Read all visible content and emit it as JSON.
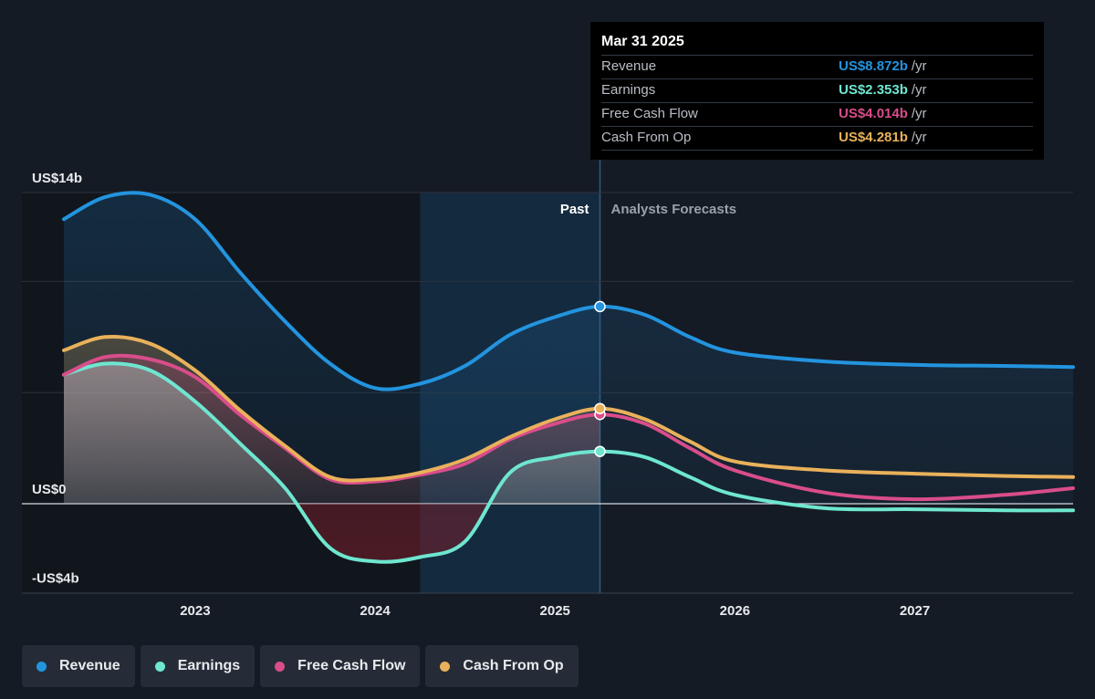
{
  "chart_data": {
    "type": "line",
    "x_range": [
      2022.27,
      2027.88
    ],
    "x_ticks": [
      {
        "value": 2023,
        "label": "2023"
      },
      {
        "value": 2024,
        "label": "2024"
      },
      {
        "value": 2025,
        "label": "2025"
      },
      {
        "value": 2026,
        "label": "2026"
      },
      {
        "value": 2027,
        "label": "2027"
      }
    ],
    "ylim": [
      -4.1,
      14.4
    ],
    "y_ticks": [
      {
        "value": 14,
        "label": "US$14b"
      },
      {
        "value": 0,
        "label": "US$0"
      },
      {
        "value": -4,
        "label": "-US$4b"
      }
    ],
    "gridlines": [
      14,
      10,
      5
    ],
    "past_label": "Past",
    "forecast_label": "Analysts Forecasts",
    "past_end": 2025.25,
    "highlight_start": 2024.25,
    "series": [
      {
        "name": "Revenue",
        "color": "#2394df",
        "x": [
          2022.27,
          2022.5,
          2022.75,
          2023.0,
          2023.25,
          2023.5,
          2023.75,
          2024.0,
          2024.25,
          2024.5,
          2024.75,
          2025.0,
          2025.25,
          2025.5,
          2025.75,
          2026.0,
          2026.5,
          2027.0,
          2027.5,
          2027.88
        ],
        "y": [
          12.8,
          13.8,
          13.9,
          12.8,
          10.4,
          8.2,
          6.3,
          5.2,
          5.4,
          6.2,
          7.6,
          8.4,
          8.872,
          8.5,
          7.5,
          6.8,
          6.4,
          6.25,
          6.2,
          6.15
        ]
      },
      {
        "name": "Earnings",
        "color": "#6ee6d0",
        "x": [
          2022.27,
          2022.5,
          2022.75,
          2023.0,
          2023.25,
          2023.5,
          2023.75,
          2024.0,
          2024.25,
          2024.5,
          2024.75,
          2025.0,
          2025.25,
          2025.5,
          2025.75,
          2026.0,
          2026.5,
          2027.0,
          2027.5,
          2027.88
        ],
        "y": [
          5.8,
          6.3,
          6.0,
          4.6,
          2.7,
          0.7,
          -2.0,
          -2.6,
          -2.4,
          -1.7,
          1.4,
          2.1,
          2.353,
          2.1,
          1.2,
          0.4,
          -0.2,
          -0.25,
          -0.3,
          -0.3
        ]
      },
      {
        "name": "Free Cash Flow",
        "color": "#d94d8a",
        "x": [
          2022.27,
          2022.5,
          2022.75,
          2023.0,
          2023.25,
          2023.5,
          2023.75,
          2024.0,
          2024.25,
          2024.5,
          2024.75,
          2025.0,
          2025.25,
          2025.5,
          2025.75,
          2026.0,
          2026.5,
          2027.0,
          2027.5,
          2027.88
        ],
        "y": [
          5.8,
          6.6,
          6.5,
          5.7,
          4.0,
          2.5,
          1.1,
          1.0,
          1.3,
          1.8,
          2.9,
          3.6,
          4.014,
          3.6,
          2.5,
          1.5,
          0.5,
          0.2,
          0.4,
          0.7
        ]
      },
      {
        "name": "Cash From Op",
        "color": "#e9b15b",
        "x": [
          2022.27,
          2022.5,
          2022.75,
          2023.0,
          2023.25,
          2023.5,
          2023.75,
          2024.0,
          2024.25,
          2024.5,
          2024.75,
          2025.0,
          2025.25,
          2025.5,
          2025.75,
          2026.0,
          2026.5,
          2027.0,
          2027.5,
          2027.88
        ],
        "y": [
          6.9,
          7.5,
          7.2,
          6.0,
          4.2,
          2.6,
          1.2,
          1.1,
          1.4,
          2.0,
          3.0,
          3.8,
          4.281,
          3.8,
          2.8,
          1.9,
          1.5,
          1.35,
          1.25,
          1.2
        ]
      }
    ]
  },
  "tooltip": {
    "date": "Mar 31 2025",
    "unit": "/yr",
    "rows": [
      {
        "label": "Revenue",
        "value": "US$8.872b",
        "color": "#2394df"
      },
      {
        "label": "Earnings",
        "value": "US$2.353b",
        "color": "#6ee6d0"
      },
      {
        "label": "Free Cash Flow",
        "value": "US$4.014b",
        "color": "#d94d8a"
      },
      {
        "label": "Cash From Op",
        "value": "US$4.281b",
        "color": "#e9b15b"
      }
    ]
  },
  "legend": [
    {
      "label": "Revenue",
      "color": "#2394df"
    },
    {
      "label": "Earnings",
      "color": "#6ee6d0"
    },
    {
      "label": "Free Cash Flow",
      "color": "#d94d8a"
    },
    {
      "label": "Cash From Op",
      "color": "#e9b15b"
    }
  ]
}
